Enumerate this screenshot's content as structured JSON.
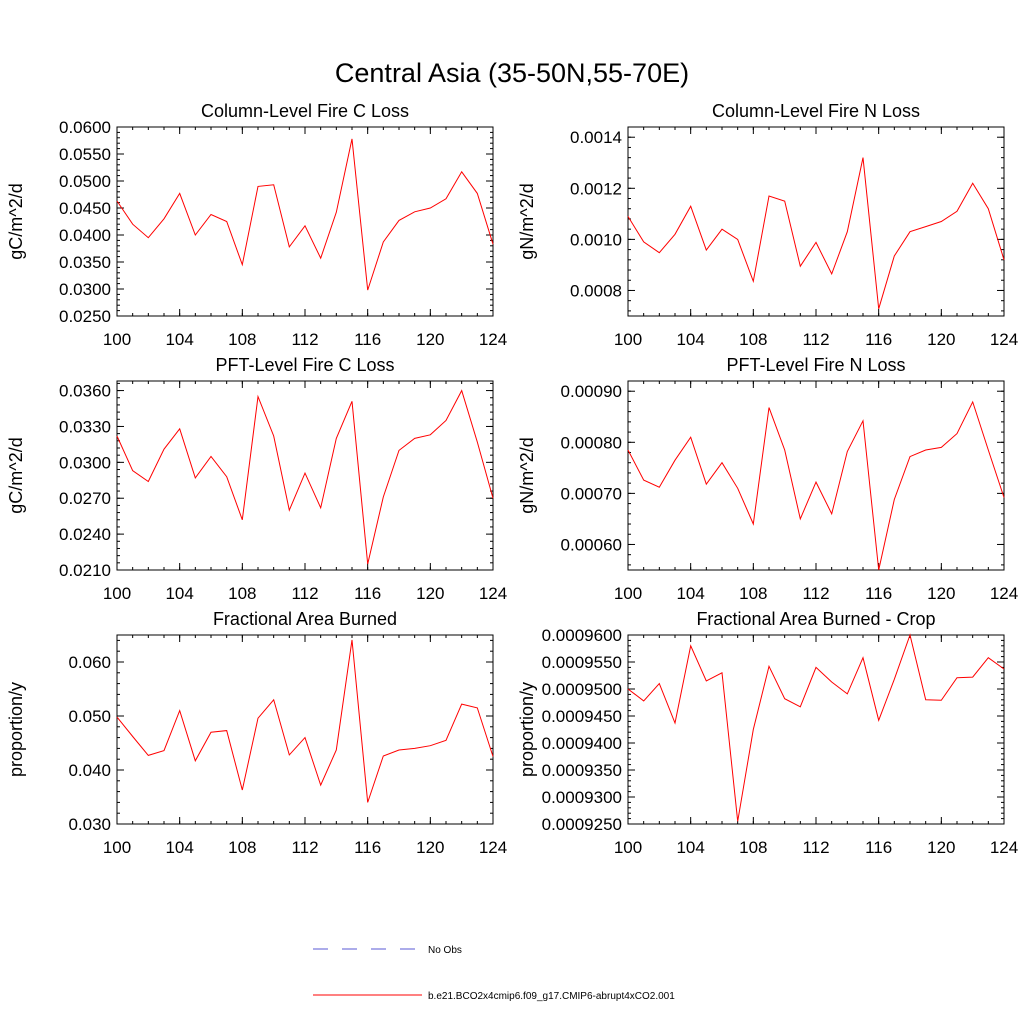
{
  "figure": {
    "title": "Central Asia (35-50N,55-70E)"
  },
  "legend": [
    {
      "label": "No Obs",
      "color": "#5a5ad6",
      "style": "dashed"
    },
    {
      "label": "b.e21.BCO2x4cmip6.f09_g17.CMIP6-abrupt4xCO2.001",
      "color": "#ff0000",
      "style": "solid"
    }
  ],
  "chart_data": [
    {
      "type": "line",
      "title": "Column-Level Fire C Loss",
      "ylabel": "gC/m^2/d",
      "xlim": [
        100,
        124
      ],
      "ylim": [
        0.025,
        0.06
      ],
      "xticks": [
        100,
        104,
        108,
        112,
        116,
        120,
        124
      ],
      "xtick_labels": [
        "100",
        "104",
        "108",
        "112",
        "116",
        "120",
        "124"
      ],
      "yticks": [
        0.025,
        0.03,
        0.035,
        0.04,
        0.045,
        0.05,
        0.055,
        0.06
      ],
      "ytick_labels": [
        "0.0250",
        "0.0300",
        "0.0350",
        "0.0400",
        "0.0450",
        "0.0500",
        "0.0550",
        "0.0600"
      ],
      "series": [
        {
          "color": "#ff0000",
          "x": [
            100,
            101,
            102,
            103,
            104,
            105,
            106,
            107,
            108,
            109,
            110,
            111,
            112,
            113,
            114,
            115,
            116,
            117,
            118,
            119,
            120,
            121,
            122,
            123,
            124
          ],
          "values": [
            0.0463,
            0.042,
            0.0395,
            0.043,
            0.0477,
            0.04,
            0.0438,
            0.0425,
            0.0345,
            0.049,
            0.0493,
            0.0378,
            0.0417,
            0.0357,
            0.0442,
            0.0578,
            0.0298,
            0.0387,
            0.0427,
            0.0443,
            0.045,
            0.0467,
            0.0517,
            0.0477,
            0.0383
          ]
        }
      ]
    },
    {
      "type": "line",
      "title": "Column-Level Fire N Loss",
      "ylabel": "gN/m^2/d",
      "xlim": [
        100,
        124
      ],
      "ylim": [
        0.0007,
        0.00144
      ],
      "xticks": [
        100,
        104,
        108,
        112,
        116,
        120,
        124
      ],
      "xtick_labels": [
        "100",
        "104",
        "108",
        "112",
        "116",
        "120",
        "124"
      ],
      "yticks": [
        0.0008,
        0.001,
        0.0012,
        0.0014
      ],
      "ytick_labels": [
        "0.0008",
        "0.0010",
        "0.0012",
        "0.0014"
      ],
      "series": [
        {
          "color": "#ff0000",
          "x": [
            100,
            101,
            102,
            103,
            104,
            105,
            106,
            107,
            108,
            109,
            110,
            111,
            112,
            113,
            114,
            115,
            116,
            117,
            118,
            119,
            120,
            121,
            122,
            123,
            124
          ],
          "values": [
            0.00109,
            0.00099,
            0.000948,
            0.00102,
            0.00113,
            0.000958,
            0.00104,
            0.001,
            0.000836,
            0.00117,
            0.00115,
            0.000895,
            0.000988,
            0.000865,
            0.00103,
            0.00132,
            0.000728,
            0.000935,
            0.00103,
            0.00105,
            0.00107,
            0.00111,
            0.00122,
            0.00112,
            0.00092
          ]
        }
      ]
    },
    {
      "type": "line",
      "title": "PFT-Level Fire C Loss",
      "ylabel": "gC/m^2/d",
      "xlim": [
        100,
        124
      ],
      "ylim": [
        0.021,
        0.0368
      ],
      "xticks": [
        100,
        104,
        108,
        112,
        116,
        120,
        124
      ],
      "xtick_labels": [
        "100",
        "104",
        "108",
        "112",
        "116",
        "120",
        "124"
      ],
      "yticks": [
        0.021,
        0.024,
        0.027,
        0.03,
        0.033,
        0.036
      ],
      "ytick_labels": [
        "0.0210",
        "0.0240",
        "0.0270",
        "0.0300",
        "0.0330",
        "0.0360"
      ],
      "series": [
        {
          "color": "#ff0000",
          "x": [
            100,
            101,
            102,
            103,
            104,
            105,
            106,
            107,
            108,
            109,
            110,
            111,
            112,
            113,
            114,
            115,
            116,
            117,
            118,
            119,
            120,
            121,
            122,
            123,
            124
          ],
          "values": [
            0.0322,
            0.0293,
            0.0284,
            0.0311,
            0.0328,
            0.0287,
            0.0305,
            0.0288,
            0.0252,
            0.0355,
            0.0322,
            0.026,
            0.0291,
            0.0262,
            0.032,
            0.0351,
            0.0215,
            0.0271,
            0.031,
            0.032,
            0.0323,
            0.0335,
            0.036,
            0.0317,
            0.027
          ]
        }
      ]
    },
    {
      "type": "line",
      "title": "PFT-Level Fire N Loss",
      "ylabel": "gN/m^2/d",
      "xlim": [
        100,
        124
      ],
      "ylim": [
        0.00055,
        0.00092
      ],
      "xticks": [
        100,
        104,
        108,
        112,
        116,
        120,
        124
      ],
      "xtick_labels": [
        "100",
        "104",
        "108",
        "112",
        "116",
        "120",
        "124"
      ],
      "yticks": [
        0.0006,
        0.0007,
        0.0008,
        0.0009
      ],
      "ytick_labels": [
        "0.00060",
        "0.00070",
        "0.00080",
        "0.00090"
      ],
      "series": [
        {
          "color": "#ff0000",
          "x": [
            100,
            101,
            102,
            103,
            104,
            105,
            106,
            107,
            108,
            109,
            110,
            111,
            112,
            113,
            114,
            115,
            116,
            117,
            118,
            119,
            120,
            121,
            122,
            123,
            124
          ],
          "values": [
            0.000785,
            0.000726,
            0.000712,
            0.000765,
            0.00081,
            0.000718,
            0.00076,
            0.00071,
            0.00064,
            0.000868,
            0.000785,
            0.00065,
            0.000722,
            0.00066,
            0.000782,
            0.000842,
            0.00055,
            0.000688,
            0.000772,
            0.000785,
            0.00079,
            0.000817,
            0.000879,
            0.000785,
            0.000692
          ]
        }
      ]
    },
    {
      "type": "line",
      "title": "Fractional Area Burned",
      "ylabel": "proportion/y",
      "xlim": [
        100,
        124
      ],
      "ylim": [
        0.03,
        0.065
      ],
      "xticks": [
        100,
        104,
        108,
        112,
        116,
        120,
        124
      ],
      "xtick_labels": [
        "100",
        "104",
        "108",
        "112",
        "116",
        "120",
        "124"
      ],
      "yticks": [
        0.03,
        0.04,
        0.05,
        0.06
      ],
      "ytick_labels": [
        "0.030",
        "0.040",
        "0.050",
        "0.060"
      ],
      "series": [
        {
          "color": "#ff0000",
          "x": [
            100,
            101,
            102,
            103,
            104,
            105,
            106,
            107,
            108,
            109,
            110,
            111,
            112,
            113,
            114,
            115,
            116,
            117,
            118,
            119,
            120,
            121,
            122,
            123,
            124
          ],
          "values": [
            0.0498,
            0.0462,
            0.0427,
            0.0436,
            0.051,
            0.0417,
            0.047,
            0.0473,
            0.0363,
            0.0496,
            0.053,
            0.0428,
            0.046,
            0.0372,
            0.0437,
            0.0641,
            0.034,
            0.0426,
            0.0437,
            0.044,
            0.0445,
            0.0455,
            0.0522,
            0.0515,
            0.0425
          ]
        }
      ]
    },
    {
      "type": "line",
      "title": "Fractional Area Burned - Crop",
      "ylabel": "proportion/y",
      "xlim": [
        100,
        124
      ],
      "ylim": [
        0.000925,
        0.00096
      ],
      "xticks": [
        100,
        104,
        108,
        112,
        116,
        120,
        124
      ],
      "xtick_labels": [
        "100",
        "104",
        "108",
        "112",
        "116",
        "120",
        "124"
      ],
      "yticks": [
        0.000925,
        0.00093,
        0.000935,
        0.00094,
        0.000945,
        0.00095,
        0.000955,
        0.00096
      ],
      "ytick_labels": [
        "0.0009250",
        "0.0009300",
        "0.0009350",
        "0.0009400",
        "0.0009450",
        "0.0009500",
        "0.0009550",
        "0.0009600"
      ],
      "series": [
        {
          "color": "#ff0000",
          "x": [
            100,
            101,
            102,
            103,
            104,
            105,
            106,
            107,
            108,
            109,
            110,
            111,
            112,
            113,
            114,
            115,
            116,
            117,
            118,
            119,
            120,
            121,
            122,
            123,
            124
          ],
          "values": [
            0.00095,
            0.0009478,
            0.000951,
            0.0009437,
            0.000958,
            0.0009515,
            0.000953,
            0.0009255,
            0.0009425,
            0.0009542,
            0.0009482,
            0.0009467,
            0.000954,
            0.0009513,
            0.0009491,
            0.0009558,
            0.0009442,
            0.0009518,
            0.00096,
            0.000948,
            0.0009479,
            0.0009521,
            0.0009522,
            0.0009558,
            0.0009537
          ]
        }
      ]
    }
  ]
}
